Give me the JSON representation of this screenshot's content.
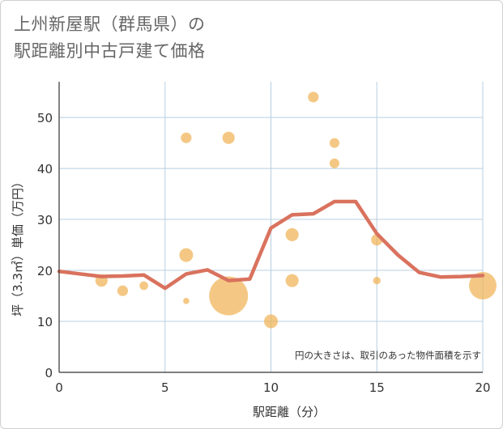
{
  "chart_data": {
    "type": "scatter",
    "title_lines": [
      "上州新屋駅（群馬県）の",
      "駅距離別中古戸建て価格"
    ],
    "xlabel": "駅距離（分）",
    "ylabel": "坪（3.3㎡）単価（万円）",
    "xlim": [
      0,
      20
    ],
    "ylim": [
      0,
      57
    ],
    "xticks": [
      0,
      5,
      10,
      15,
      20
    ],
    "yticks": [
      0,
      10,
      20,
      30,
      40,
      50
    ],
    "grid": true,
    "note": "円の大きさは、取引のあった物件面積を示す",
    "colors": {
      "bubble": "#f0b050",
      "line": "#d9725e",
      "grid": "#b8cfe0"
    },
    "bubbles": [
      {
        "x": 2,
        "y": 18,
        "size": 4
      },
      {
        "x": 3,
        "y": 16,
        "size": 3
      },
      {
        "x": 4,
        "y": 17,
        "size": 2
      },
      {
        "x": 6,
        "y": 46,
        "size": 3
      },
      {
        "x": 6,
        "y": 23,
        "size": 5
      },
      {
        "x": 6,
        "y": 14,
        "size": 1
      },
      {
        "x": 8,
        "y": 46,
        "size": 4
      },
      {
        "x": 8,
        "y": 15,
        "size": 40
      },
      {
        "x": 10,
        "y": 10,
        "size": 5
      },
      {
        "x": 11,
        "y": 27,
        "size": 4.5
      },
      {
        "x": 11,
        "y": 18,
        "size": 4.5
      },
      {
        "x": 12,
        "y": 54,
        "size": 3
      },
      {
        "x": 13,
        "y": 45,
        "size": 2.5
      },
      {
        "x": 13,
        "y": 41,
        "size": 2.5
      },
      {
        "x": 15,
        "y": 26,
        "size": 3.5
      },
      {
        "x": 15,
        "y": 18,
        "size": 1.5
      },
      {
        "x": 20,
        "y": 17,
        "size": 20
      }
    ],
    "line": {
      "x": [
        0,
        1,
        2,
        3,
        4,
        5,
        6,
        7,
        8,
        9,
        10,
        11,
        12,
        13,
        14,
        15,
        16,
        17,
        18,
        19,
        20
      ],
      "y": [
        19.8,
        19.3,
        18.8,
        18.9,
        19.1,
        16.5,
        19.3,
        20.1,
        18.0,
        18.3,
        28.3,
        30.9,
        31.1,
        33.5,
        33.5,
        27.2,
        23.0,
        19.6,
        18.7,
        18.8,
        19.0
      ]
    }
  }
}
